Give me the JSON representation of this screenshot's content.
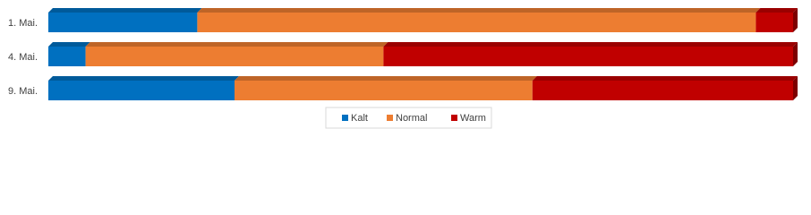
{
  "chart_data": {
    "type": "bar",
    "orientation": "horizontal",
    "stacked": true,
    "categories": [
      "1. Mai.",
      "4. Mai.",
      "9. Mai."
    ],
    "series": [
      {
        "name": "Kalt",
        "color": "#0070c0",
        "values": [
          20,
          5,
          25
        ]
      },
      {
        "name": "Normal",
        "color": "#ed7d31",
        "values": [
          75,
          40,
          40
        ]
      },
      {
        "name": "Warm",
        "color": "#c00000",
        "values": [
          5,
          55,
          35
        ]
      }
    ],
    "xlim": [
      0,
      100
    ],
    "legend": "bottom"
  }
}
